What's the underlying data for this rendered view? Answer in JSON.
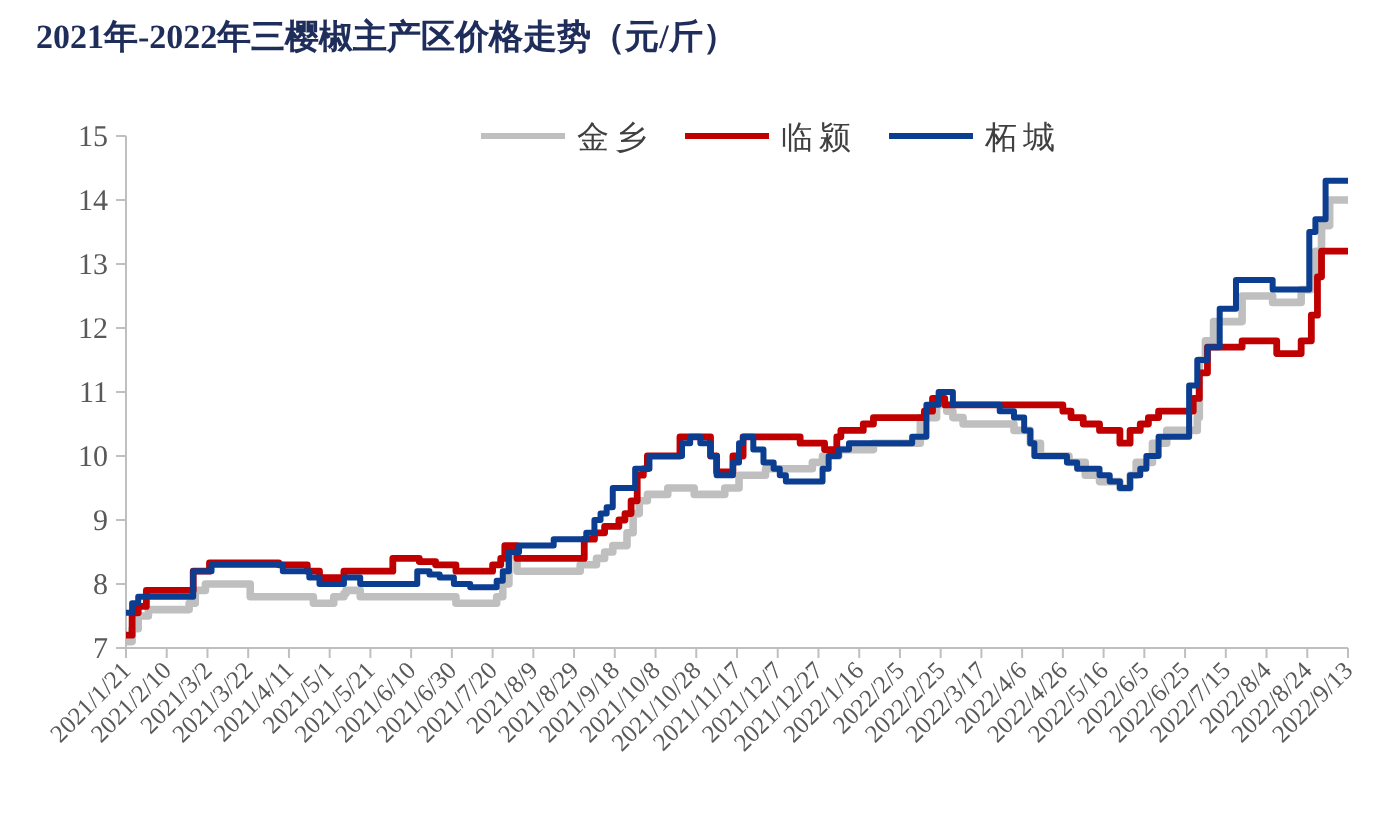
{
  "chart_data": {
    "type": "step",
    "title": "2021年-2022年三樱椒主产区价格走势（元/斤）",
    "legend": "top",
    "grid": false,
    "marker": "none",
    "line_style": "solid",
    "xlim": [
      "2021-01-21",
      "2022-09-13"
    ],
    "xticks": [
      {
        "value": "2021-01-21",
        "label": "2021/1/21"
      },
      {
        "value": "2021-02-10",
        "label": "2021/2/10"
      },
      {
        "value": "2021-03-02",
        "label": "2021/3/2"
      },
      {
        "value": "2021-03-22",
        "label": "2021/3/22"
      },
      {
        "value": "2021-04-11",
        "label": "2021/4/11"
      },
      {
        "value": "2021-05-01",
        "label": "2021/5/1"
      },
      {
        "value": "2021-05-21",
        "label": "2021/5/21"
      },
      {
        "value": "2021-06-10",
        "label": "2021/6/10"
      },
      {
        "value": "2021-06-30",
        "label": "2021/6/30"
      },
      {
        "value": "2021-07-20",
        "label": "2021/7/20"
      },
      {
        "value": "2021-08-09",
        "label": "2021/8/9"
      },
      {
        "value": "2021-08-29",
        "label": "2021/8/29"
      },
      {
        "value": "2021-09-18",
        "label": "2021/9/18"
      },
      {
        "value": "2021-10-08",
        "label": "2021/10/8"
      },
      {
        "value": "2021-10-28",
        "label": "2021/10/28"
      },
      {
        "value": "2021-11-17",
        "label": "2021/11/17"
      },
      {
        "value": "2021-12-07",
        "label": "2021/12/7"
      },
      {
        "value": "2021-12-27",
        "label": "2021/12/27"
      },
      {
        "value": "2022-01-16",
        "label": "2022/1/16"
      },
      {
        "value": "2022-02-05",
        "label": "2022/2/5"
      },
      {
        "value": "2022-02-25",
        "label": "2022/2/25"
      },
      {
        "value": "2022-03-17",
        "label": "2022/3/17"
      },
      {
        "value": "2022-04-06",
        "label": "2022/4/6"
      },
      {
        "value": "2022-04-26",
        "label": "2022/4/26"
      },
      {
        "value": "2022-05-16",
        "label": "2022/5/16"
      },
      {
        "value": "2022-06-05",
        "label": "2022/6/5"
      },
      {
        "value": "2022-06-25",
        "label": "2022/6/25"
      },
      {
        "value": "2022-07-15",
        "label": "2022/7/15"
      },
      {
        "value": "2022-08-04",
        "label": "2022/8/4"
      },
      {
        "value": "2022-08-24",
        "label": "2022/8/24"
      },
      {
        "value": "2022-09-13",
        "label": "2022/9/13"
      }
    ],
    "ylim": [
      7,
      15
    ],
    "yticks": [
      7,
      8,
      9,
      10,
      11,
      12,
      13,
      14,
      15
    ],
    "series": [
      {
        "name": "金乡",
        "color": "#bfbfbf",
        "x": [
          "2021-01-21",
          "2021-01-24",
          "2021-01-27",
          "2021-02-01",
          "2021-02-21",
          "2021-02-24",
          "2021-03-01",
          "2021-03-23",
          "2021-04-23",
          "2021-05-03",
          "2021-05-08",
          "2021-05-09",
          "2021-05-16",
          "2021-07-02",
          "2021-07-22",
          "2021-07-25",
          "2021-07-28",
          "2021-08-01",
          "2021-09-01",
          "2021-09-09",
          "2021-09-13",
          "2021-09-17",
          "2021-09-24",
          "2021-09-27",
          "2021-09-30",
          "2021-10-04",
          "2021-10-14",
          "2021-10-27",
          "2021-11-11",
          "2021-11-18",
          "2021-12-01",
          "2021-12-24",
          "2021-12-29",
          "2022-01-06",
          "2022-01-23",
          "2022-02-15",
          "2022-02-23",
          "2022-02-28",
          "2022-03-03",
          "2022-03-08",
          "2022-04-02",
          "2022-04-10",
          "2022-04-15",
          "2022-04-29",
          "2022-05-07",
          "2022-05-14",
          "2022-05-24",
          "2022-05-29",
          "2022-06-01",
          "2022-06-09",
          "2022-06-16",
          "2022-07-01",
          "2022-07-02",
          "2022-07-05",
          "2022-07-09",
          "2022-07-23",
          "2022-08-07",
          "2022-08-21",
          "2022-08-26",
          "2022-08-28",
          "2022-08-31",
          "2022-09-04",
          "2022-09-13"
        ],
        "values": [
          7.1,
          7.3,
          7.5,
          7.6,
          7.7,
          7.9,
          8.0,
          7.8,
          7.7,
          7.8,
          7.85,
          7.9,
          7.8,
          7.7,
          7.8,
          8.0,
          8.45,
          8.2,
          8.3,
          8.4,
          8.5,
          8.6,
          8.8,
          9.1,
          9.3,
          9.4,
          9.5,
          9.4,
          9.5,
          9.7,
          9.8,
          9.9,
          10.0,
          10.1,
          10.2,
          10.6,
          10.8,
          10.7,
          10.6,
          10.5,
          10.4,
          10.2,
          10.0,
          9.9,
          9.7,
          9.6,
          9.5,
          9.7,
          9.9,
          10.2,
          10.4,
          10.6,
          11.5,
          11.8,
          12.1,
          12.5,
          12.4,
          12.6,
          12.8,
          13.2,
          13.6,
          14.0,
          14.0
        ]
      },
      {
        "name": "临颍",
        "color": "#c00000",
        "x": [
          "2021-01-21",
          "2021-01-24",
          "2021-01-27",
          "2021-01-31",
          "2021-02-23",
          "2021-03-03",
          "2021-04-06",
          "2021-04-20",
          "2021-04-26",
          "2021-05-08",
          "2021-06-01",
          "2021-06-14",
          "2021-06-22",
          "2021-07-02",
          "2021-07-20",
          "2021-07-24",
          "2021-07-26",
          "2021-08-01",
          "2021-09-03",
          "2021-09-08",
          "2021-09-13",
          "2021-09-20",
          "2021-09-23",
          "2021-09-26",
          "2021-09-29",
          "2021-10-02",
          "2021-10-04",
          "2021-10-20",
          "2021-11-04",
          "2021-11-07",
          "2021-11-15",
          "2021-11-20",
          "2021-12-18",
          "2021-12-30",
          "2022-01-05",
          "2022-01-07",
          "2022-01-18",
          "2022-01-23",
          "2022-02-17",
          "2022-02-21",
          "2022-02-27",
          "2022-04-26",
          "2022-04-30",
          "2022-05-06",
          "2022-05-14",
          "2022-05-24",
          "2022-05-29",
          "2022-06-03",
          "2022-06-07",
          "2022-06-12",
          "2022-06-29",
          "2022-07-02",
          "2022-07-06",
          "2022-07-23",
          "2022-08-09",
          "2022-08-21",
          "2022-08-26",
          "2022-08-29",
          "2022-08-31",
          "2022-09-13"
        ],
        "values": [
          7.2,
          7.55,
          7.65,
          7.9,
          8.2,
          8.33,
          8.3,
          8.2,
          8.1,
          8.2,
          8.4,
          8.35,
          8.3,
          8.2,
          8.3,
          8.4,
          8.6,
          8.4,
          8.7,
          8.8,
          8.9,
          9.0,
          9.1,
          9.3,
          9.7,
          9.8,
          10.0,
          10.3,
          10.0,
          9.75,
          10.0,
          10.3,
          10.2,
          10.1,
          10.3,
          10.4,
          10.5,
          10.6,
          10.7,
          10.9,
          10.8,
          10.7,
          10.6,
          10.5,
          10.4,
          10.2,
          10.4,
          10.5,
          10.6,
          10.7,
          10.9,
          11.3,
          11.7,
          11.8,
          11.6,
          11.8,
          12.2,
          12.8,
          13.2,
          13.2
        ]
      },
      {
        "name": "柘城",
        "color": "#0b3d91",
        "x": [
          "2021-01-21",
          "2021-01-24",
          "2021-01-27",
          "2021-02-23",
          "2021-03-04",
          "2021-04-08",
          "2021-04-21",
          "2021-04-26",
          "2021-05-08",
          "2021-05-16",
          "2021-06-13",
          "2021-06-19",
          "2021-06-24",
          "2021-07-01",
          "2021-07-09",
          "2021-07-22",
          "2021-07-25",
          "2021-07-28",
          "2021-08-02",
          "2021-08-19",
          "2021-09-04",
          "2021-09-08",
          "2021-09-11",
          "2021-09-14",
          "2021-09-17",
          "2021-09-28",
          "2021-10-05",
          "2021-10-21",
          "2021-10-25",
          "2021-10-30",
          "2021-11-04",
          "2021-11-07",
          "2021-11-15",
          "2021-11-18",
          "2021-11-20",
          "2021-11-25",
          "2021-11-30",
          "2021-12-05",
          "2021-12-08",
          "2021-12-11",
          "2021-12-29",
          "2022-01-01",
          "2022-01-06",
          "2022-01-11",
          "2022-02-11",
          "2022-02-18",
          "2022-02-24",
          "2022-03-03",
          "2022-03-26",
          "2022-04-02",
          "2022-04-07",
          "2022-04-10",
          "2022-04-12",
          "2022-04-28",
          "2022-05-03",
          "2022-05-14",
          "2022-05-19",
          "2022-05-24",
          "2022-05-29",
          "2022-06-03",
          "2022-06-06",
          "2022-06-12",
          "2022-06-27",
          "2022-07-01",
          "2022-07-06",
          "2022-07-12",
          "2022-07-20",
          "2022-08-07",
          "2022-08-25",
          "2022-08-28",
          "2022-09-02",
          "2022-09-13"
        ],
        "values": [
          7.55,
          7.7,
          7.8,
          8.2,
          8.3,
          8.2,
          8.1,
          8.0,
          8.1,
          8.0,
          8.2,
          8.15,
          8.1,
          8.0,
          7.95,
          8.05,
          8.2,
          8.5,
          8.6,
          8.7,
          8.8,
          9.0,
          9.1,
          9.2,
          9.5,
          9.8,
          10.0,
          10.2,
          10.3,
          10.2,
          10.0,
          9.7,
          9.9,
          10.2,
          10.3,
          10.1,
          9.9,
          9.8,
          9.7,
          9.6,
          9.8,
          10.0,
          10.1,
          10.2,
          10.3,
          10.8,
          11.0,
          10.8,
          10.7,
          10.6,
          10.4,
          10.2,
          10.0,
          9.9,
          9.8,
          9.7,
          9.6,
          9.5,
          9.7,
          9.8,
          10.0,
          10.3,
          11.1,
          11.5,
          11.7,
          12.3,
          12.75,
          12.6,
          13.5,
          13.7,
          14.3,
          14.3
        ]
      }
    ]
  }
}
